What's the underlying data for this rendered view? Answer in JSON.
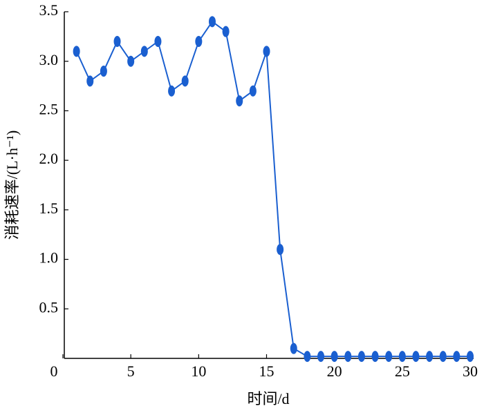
{
  "chart_data": {
    "type": "line",
    "x_label": "时间/d",
    "y_label": "消耗速率/(L·h⁻¹)",
    "x": [
      1,
      2,
      3,
      4,
      5,
      6,
      7,
      8,
      9,
      10,
      11,
      12,
      13,
      14,
      15,
      16,
      17,
      18,
      19,
      20,
      21,
      22,
      23,
      24,
      25,
      26,
      27,
      28,
      29,
      30
    ],
    "series": [
      {
        "color": "#1a5fd0",
        "values": [
          3.1,
          2.8,
          2.9,
          3.2,
          3.0,
          3.1,
          3.2,
          2.7,
          2.8,
          3.2,
          3.4,
          3.3,
          2.6,
          2.7,
          3.1,
          1.1,
          0.1,
          0.02,
          0.02,
          0.02,
          0.02,
          0.02,
          0.02,
          0.02,
          0.02,
          0.02,
          0.02,
          0.02,
          0.02,
          0.02
        ]
      }
    ],
    "xlim": [
      0,
      30
    ],
    "xticks": [
      0,
      5,
      10,
      15,
      20,
      25,
      30
    ],
    "ylim": [
      0,
      3.5
    ],
    "yticks": [
      0.5,
      {
        "value": 1,
        "label": "1.0"
      },
      1.5,
      {
        "value": 2,
        "label": "2.0"
      },
      2.5,
      {
        "value": 3,
        "label": "3.0"
      },
      3.5
    ]
  }
}
